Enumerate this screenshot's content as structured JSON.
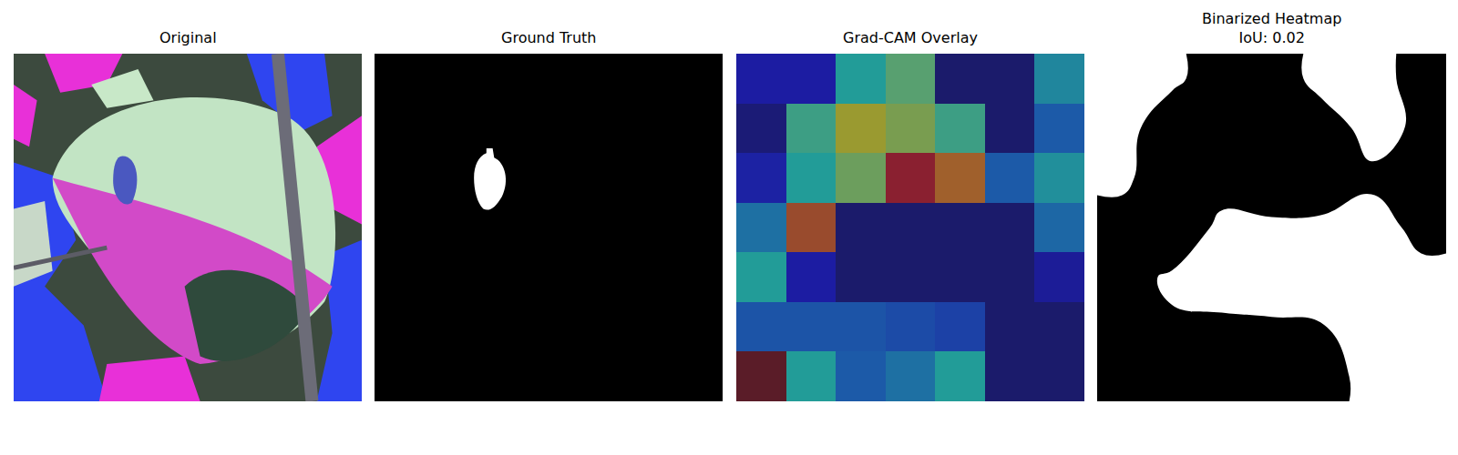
{
  "chart_data": [
    {
      "type": "image",
      "title": "Original"
    },
    {
      "type": "mask",
      "title": "Ground Truth"
    },
    {
      "type": "heatmap",
      "title": "Grad-CAM Overlay",
      "tick_labels": false,
      "cells": [
        [
          0.1,
          0.1,
          0.45,
          0.55,
          0.0,
          0.0,
          0.4
        ],
        [
          0.02,
          0.5,
          0.65,
          0.6,
          0.5,
          0.0,
          0.3
        ],
        [
          0.12,
          0.45,
          0.58,
          0.95,
          0.8,
          0.3,
          0.42
        ],
        [
          0.35,
          0.85,
          0.0,
          0.0,
          0.0,
          0.0,
          0.33
        ],
        [
          0.45,
          0.1,
          0.0,
          0.0,
          0.0,
          0.0,
          0.08
        ],
        [
          0.28,
          0.28,
          0.28,
          0.25,
          0.22,
          0.0,
          0.0
        ],
        [
          1.0,
          0.45,
          0.3,
          0.35,
          0.45,
          0.0,
          0.0
        ]
      ]
    },
    {
      "type": "contour",
      "title": "Binarized Heatmap\nIoU: 0.02",
      "tick_labels": false,
      "threshold": 0.2,
      "cells": [
        [
          0.1,
          0.1,
          0.45,
          0.55,
          0.0,
          0.0,
          0.4
        ],
        [
          0.02,
          0.5,
          0.65,
          0.6,
          0.5,
          0.0,
          0.3
        ],
        [
          0.12,
          0.45,
          0.58,
          0.95,
          0.8,
          0.3,
          0.42
        ],
        [
          0.35,
          0.85,
          0.0,
          0.0,
          0.0,
          0.0,
          0.33
        ],
        [
          0.45,
          0.1,
          0.0,
          0.0,
          0.0,
          0.0,
          0.08
        ],
        [
          0.28,
          0.28,
          0.28,
          0.25,
          0.22,
          0.0,
          0.0
        ],
        [
          1.0,
          0.45,
          0.3,
          0.35,
          0.45,
          0.0,
          0.0
        ]
      ]
    }
  ]
}
